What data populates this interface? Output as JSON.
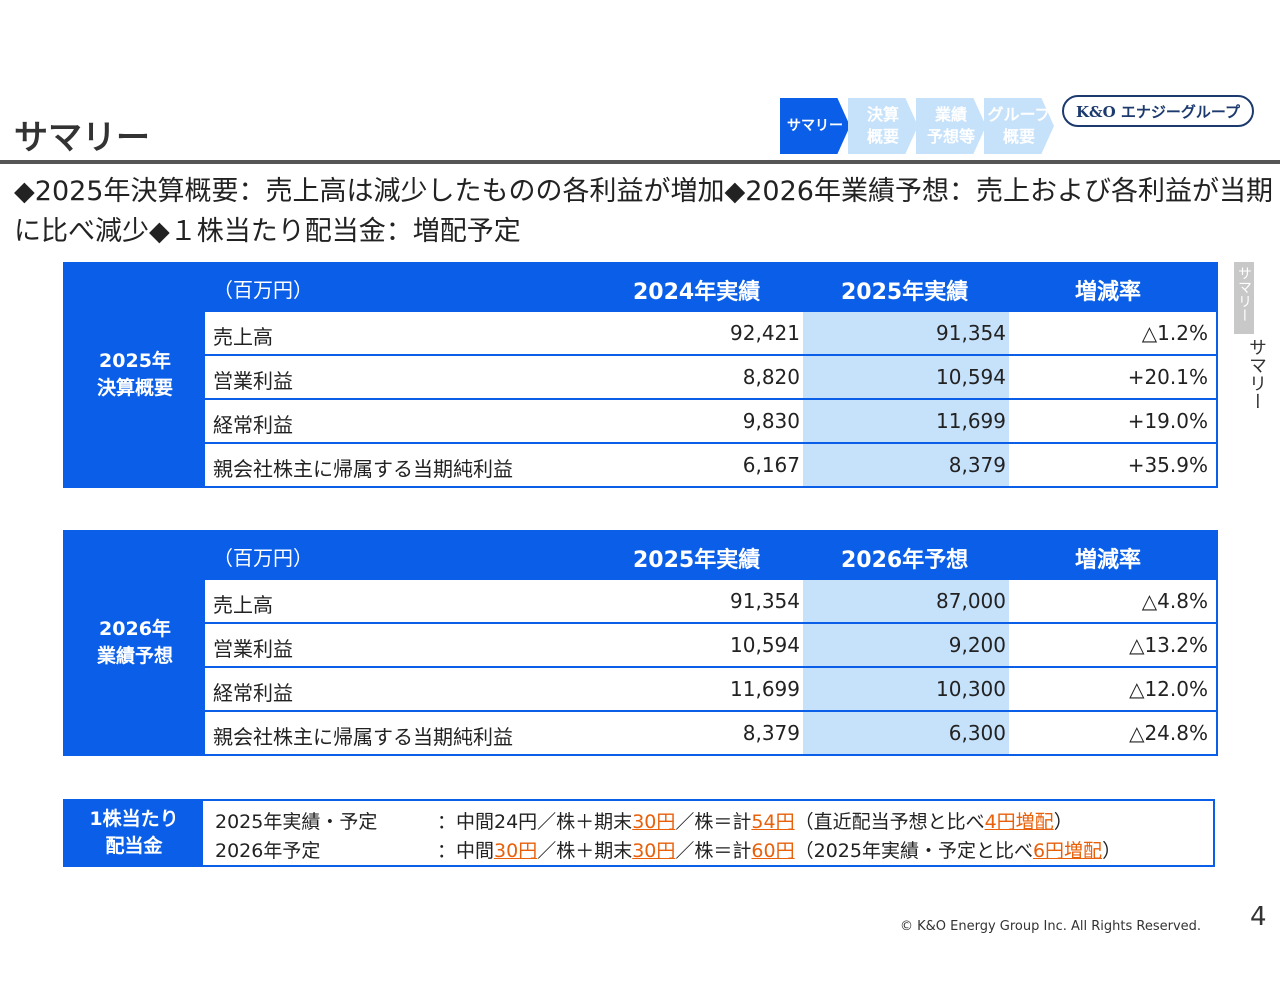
{
  "header": {
    "title": "サマリー",
    "nav": [
      "サマリー",
      "決算\n概要",
      "業績\n予想等",
      "グループ\n概要"
    ],
    "logo": "K&O エナジーグループ"
  },
  "summary": "◆2025年決算概要：売上高は減少したものの各利益が増加◆2026年業績予想：売上および各利益が当期に比べ減少◆１株当たり配当金：増配予定",
  "tables": [
    {
      "side": "2025年\n決算概要",
      "headers": [
        "（百万円）",
        "2024年実績",
        "2025年実績",
        "増減率"
      ],
      "rows": [
        [
          "売上高",
          "92,421",
          "91,354",
          "△1.2%"
        ],
        [
          "営業利益",
          "8,820",
          "10,594",
          "+20.1%"
        ],
        [
          "経常利益",
          "9,830",
          "11,699",
          "+19.0%"
        ],
        [
          "親会社株主に帰属する当期純利益",
          "6,167",
          "8,379",
          "+35.9%"
        ]
      ]
    },
    {
      "side": "2026年\n業績予想",
      "headers": [
        "（百万円）",
        "2025年実績",
        "2026年予想",
        "増減率"
      ],
      "rows": [
        [
          "売上高",
          "91,354",
          "87,000",
          "△4.8%"
        ],
        [
          "営業利益",
          "10,594",
          "9,200",
          "△13.2%"
        ],
        [
          "経常利益",
          "11,699",
          "10,300",
          "△12.0%"
        ],
        [
          "親会社株主に帰属する当期純利益",
          "8,379",
          "6,300",
          "△24.8%"
        ]
      ]
    }
  ],
  "dividend": {
    "side": "1株当たり\n配当金",
    "lines": [
      {
        "label": "2025年実績・予定",
        "segments": [
          {
            "t": "：中間24円／株＋期末"
          },
          {
            "t": "30円",
            "hl": true
          },
          {
            "t": "／株＝計"
          },
          {
            "t": "54円",
            "hl": true
          },
          {
            "t": "（直近配当予想と比べ"
          },
          {
            "t": "4円増配",
            "hl": true
          },
          {
            "t": "）"
          }
        ]
      },
      {
        "label": "2026年予定",
        "segments": [
          {
            "t": "：中間"
          },
          {
            "t": "30円",
            "hl": true
          },
          {
            "t": "／株＋期末"
          },
          {
            "t": "30円",
            "hl": true
          },
          {
            "t": "／株＝計"
          },
          {
            "t": "60円",
            "hl": true
          },
          {
            "t": "（2025年実績・予定と比べ"
          },
          {
            "t": "6円増配",
            "hl": true
          },
          {
            "t": "）"
          }
        ]
      }
    ]
  },
  "side_tab": {
    "active": "サマリー",
    "label": "サマリー"
  },
  "footer": {
    "copyright": "© K&O Energy Group Inc. All Rights Reserved.",
    "page": "4"
  },
  "colors": {
    "primary": "#0a5ee8",
    "highlight_col": "#c6e2fb",
    "accent": "#e8600a"
  }
}
